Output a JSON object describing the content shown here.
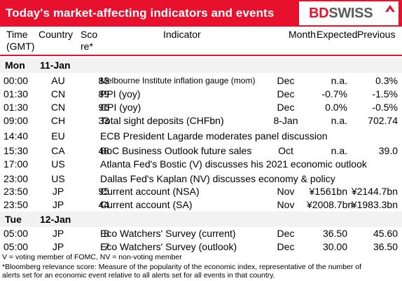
{
  "header": {
    "title": "Today's market-affecting indicators and events",
    "logo_bd": "BD",
    "logo_swiss": "SWISS",
    "accent": "#e8112d"
  },
  "columns": {
    "time_l1": "Time",
    "time_l2": "(GMT)",
    "country": "Country",
    "score_l1": "Sco",
    "score_l2": "re*",
    "indicator": "Indicator",
    "month": "Month",
    "expected": "Expected",
    "previous": "Previous"
  },
  "days": [
    {
      "day": "Mon",
      "date": "11-Jan"
    },
    {
      "day": "Tue",
      "date": "12-Jan"
    }
  ],
  "rows": [
    {
      "time": "00:00",
      "country": "AU",
      "score": "83",
      "indicator": "Melbourne Institute inflation gauge (mom)",
      "month": "Dec",
      "expected": "n.a.",
      "previous": "0.3%"
    },
    {
      "time": "01:30",
      "country": "CN",
      "score": "89",
      "indicator": "PPI (yoy)",
      "month": "Dec",
      "expected": "-0.7%",
      "previous": "-1.5%"
    },
    {
      "time": "01:30",
      "country": "CN",
      "score": "96",
      "indicator": "CPI (yoy)",
      "month": "Dec",
      "expected": "0.0%",
      "previous": "-0.5%"
    },
    {
      "time": "09:00",
      "country": "CH",
      "score": "33",
      "indicator": "Total sight deposits (CHFbn)",
      "month": "8-Jan",
      "expected": "n.a.",
      "previous": "702.74"
    },
    {
      "time": "14:40",
      "country": "EU",
      "score": "",
      "indicator": "ECB President Lagarde moderates panel discussion",
      "month": "",
      "expected": "",
      "previous": ""
    },
    {
      "time": "15:30",
      "country": "CA",
      "score": "48",
      "indicator": "BoC Business Outlook future sales",
      "month": "Oct",
      "expected": "n.a.",
      "previous": "39.0"
    },
    {
      "time": "17:00",
      "country": "US",
      "score": "",
      "indicator": "Atlanta Fed's Bostic (V) discusses his 2021 economic outlook",
      "month": "",
      "expected": "",
      "previous": ""
    },
    {
      "time": "23:00",
      "country": "US",
      "score": "",
      "indicator": "Dallas Fed's Kaplan (NV) discusses economy & policy",
      "month": "",
      "expected": "",
      "previous": ""
    },
    {
      "time": "23:50",
      "country": "JP",
      "score": "95",
      "indicator": "Current account  (NSA)",
      "month": "Nov",
      "expected": "¥1561bn",
      "previous": "¥2144.7bn"
    },
    {
      "time": "23:50",
      "country": "JP",
      "score": "44",
      "indicator": "Current account  (SA)",
      "month": "Nov",
      "expected": "¥2008.7bn",
      "previous": "¥1983.3bn"
    },
    {
      "time": "05:00",
      "country": "JP",
      "score": "8",
      "indicator": "Eco Watchers' Survey (current)",
      "month": "Dec",
      "expected": "36.50",
      "previous": "45.60"
    },
    {
      "time": "05:00",
      "country": "JP",
      "score": "7",
      "indicator": "Eco Watchers' Survey (outlook)",
      "month": "Dec",
      "expected": "30.00",
      "previous": "36.50"
    }
  ],
  "footer": {
    "line1": "V = voting member of FOMC, NV = non-voting member",
    "line2": "*Bloomberg relevance score:  Measure of the popularity of the economic index, representative of the number of",
    "line3": "alerts set for an economic event relative to all alerts set for all events in that country."
  }
}
